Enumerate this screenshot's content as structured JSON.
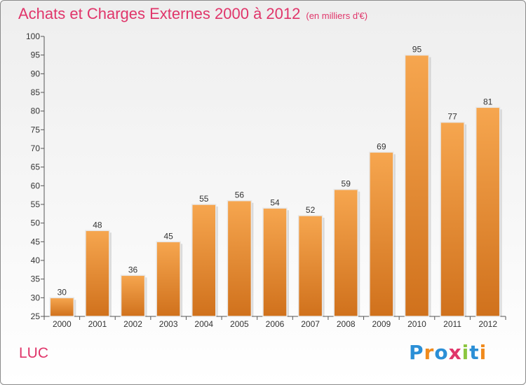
{
  "header": {
    "title": "Achats et Charges Externes 2000 à 2012",
    "subtitle": "(en milliers d'€)"
  },
  "footer": {
    "commune": "LUC",
    "logo_letters": [
      "P",
      "r",
      "o",
      "x",
      "i",
      "t",
      "i"
    ],
    "logo_colors": [
      "#2b8fd6",
      "#f08a1c",
      "#2b8fd6",
      "#e0356a",
      "#8cc63f",
      "#2b8fd6",
      "#f08a1c"
    ]
  },
  "chart_data": {
    "type": "bar",
    "title": "Achats et Charges Externes 2000 à 2012",
    "subtitle": "(en milliers d'€)",
    "categories": [
      "2000",
      "2001",
      "2002",
      "2003",
      "2004",
      "2005",
      "2006",
      "2007",
      "2008",
      "2009",
      "2010",
      "2011",
      "2012"
    ],
    "values": [
      30,
      48,
      36,
      45,
      55,
      56,
      54,
      52,
      59,
      69,
      95,
      77,
      81
    ],
    "ylim": [
      25,
      100
    ],
    "yticks": [
      25,
      30,
      35,
      40,
      45,
      50,
      55,
      60,
      65,
      70,
      75,
      80,
      85,
      90,
      95,
      100
    ],
    "grid": false,
    "bar_color_top": "#f6a64f",
    "bar_color_bottom": "#d0711c"
  }
}
